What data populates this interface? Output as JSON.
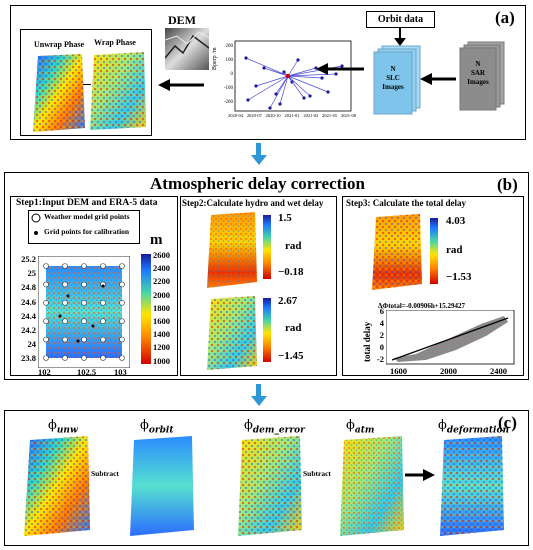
{
  "panel_a": {
    "label": "(a)",
    "dem_title": "DEM",
    "orbit_title": "Orbit data",
    "unwrap_title": "Unwrap Phase",
    "wrap_title": "Wrap Phase",
    "slc_text": [
      "N",
      "SLC",
      "Images"
    ],
    "sar_text": [
      "N",
      "SAR",
      "Images"
    ],
    "baseline_ylabel": "Bperp /m",
    "baseline_yticks": [
      "200",
      "100",
      "0",
      "-100",
      "-200"
    ],
    "baseline_xticks": [
      "2020-04",
      "2020-07",
      "2020-10",
      "2021-01",
      "2021-02",
      "2021-05",
      "2021-08"
    ]
  },
  "panel_b": {
    "label": "(b)",
    "title": "Atmospheric delay correction",
    "step1_title": "Step1:Input DEM and ERA-5 data",
    "step2_title": "Step2:Calculate hydro and wet delay",
    "step3_title": "Step3:  Calculate  the  total  delay",
    "legend_weather": "Weather model grid points",
    "legend_grid": "Grid points for calibration",
    "dem_unit": "m",
    "dem_yticks": [
      "25.2",
      "25",
      "24.8",
      "24.6",
      "24.4",
      "24.2",
      "24",
      "23.8"
    ],
    "dem_xticks": [
      "102",
      "102.5",
      "103"
    ],
    "dem_cbar_ticks": [
      "2600",
      "2400",
      "2200",
      "2000",
      "1800",
      "1600",
      "1400",
      "1200",
      "1000"
    ],
    "hydro_max": "1.5",
    "hydro_unit": "rad",
    "hydro_min": "−0.18",
    "wet_max": "2.67",
    "wet_unit": "rad",
    "wet_min": "−1.45",
    "total_max": "4.03",
    "total_unit": "rad",
    "total_min": "−1.53",
    "regression_eq": "ΔΦtotal=-0.00906h+15.29427",
    "scatter_ylabel": "total  delay",
    "scatter_yticks": [
      "6",
      "4",
      "2",
      "0",
      "-2"
    ],
    "scatter_xticks": [
      "1600",
      "2000",
      "2400"
    ]
  },
  "panel_c": {
    "label": "(c)",
    "phi_unw": "ϕ",
    "phi_unw_sub": "unw",
    "phi_orbit": "ϕ",
    "phi_orbit_sub": "orbit",
    "phi_dem": "ϕ",
    "phi_dem_sub": "dem_error",
    "phi_atm": "ϕ",
    "phi_atm_sub": "atm",
    "phi_def": "ϕ",
    "phi_def_sub": "deformation",
    "subtract_1": "Subtract",
    "subtract_2": "Subtract"
  },
  "colors": {
    "arrow_blue": "#2e97d6",
    "slc_blue": "#7fc4ea",
    "sar_gray": "#8c8c8c",
    "baseline_line": "#4a4ad8"
  }
}
